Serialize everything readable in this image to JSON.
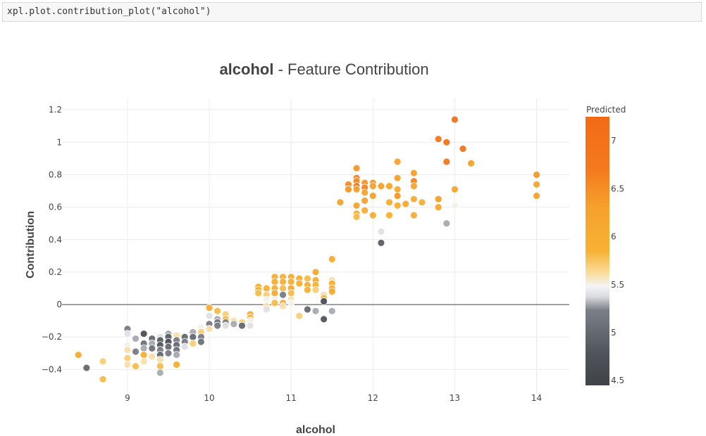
{
  "notebook": {
    "code": "xpl.plot.contribution_plot(\"alcohol\")"
  },
  "chart_data": {
    "type": "scatter",
    "title_bold": "alcohol",
    "title_rest": " - Feature Contribution",
    "xlabel": "alcohol",
    "ylabel": "Contribution",
    "xlim": [
      8.2,
      14.4
    ],
    "ylim": [
      -0.55,
      1.27
    ],
    "xticks": [
      9,
      10,
      11,
      12,
      13,
      14
    ],
    "yticks": [
      -0.4,
      -0.2,
      0,
      0.2,
      0.4,
      0.6,
      0.8,
      1,
      1.2
    ],
    "xtick_labels": [
      "9",
      "10",
      "11",
      "12",
      "13",
      "14"
    ],
    "ytick_labels": [
      "−0.4",
      "−0.2",
      "0",
      "0.2",
      "0.4",
      "0.6",
      "0.8",
      "1",
      "1.2"
    ],
    "grid": true,
    "zero_line": true,
    "colorbar": {
      "title": "Predicted",
      "range": [
        4.45,
        7.25
      ],
      "ticks": [
        4.5,
        5,
        5.5,
        6,
        6.5,
        7
      ],
      "tick_labels": [
        "4.5",
        "5",
        "5.5",
        "6",
        "6.5",
        "7"
      ],
      "colorscale": [
        [
          0.0,
          "#3f4247"
        ],
        [
          0.12,
          "#50545b"
        ],
        [
          0.28,
          "#7b7f87"
        ],
        [
          0.33,
          "#d9dbe0"
        ],
        [
          0.37,
          "#f4f4f4"
        ],
        [
          0.42,
          "#f9dc9a"
        ],
        [
          0.5,
          "#f7b133"
        ],
        [
          0.66,
          "#f6a22c"
        ],
        [
          0.8,
          "#f47a1e"
        ],
        [
          1.0,
          "#f26a16"
        ]
      ]
    },
    "points": [
      [
        8.4,
        -0.31,
        6.0
      ],
      [
        8.5,
        -0.39,
        5.0
      ],
      [
        8.7,
        -0.35,
        5.7
      ],
      [
        8.7,
        -0.46,
        5.8
      ],
      [
        9.0,
        -0.15,
        5.2
      ],
      [
        9.0,
        -0.18,
        5.4
      ],
      [
        9.0,
        -0.25,
        5.5
      ],
      [
        9.0,
        -0.28,
        5.6
      ],
      [
        9.0,
        -0.33,
        5.7
      ],
      [
        9.0,
        -0.37,
        5.6
      ],
      [
        9.1,
        -0.21,
        5.3
      ],
      [
        9.1,
        -0.29,
        5.2
      ],
      [
        9.1,
        -0.38,
        5.8
      ],
      [
        9.2,
        -0.18,
        4.7
      ],
      [
        9.2,
        -0.24,
        5.1
      ],
      [
        9.2,
        -0.27,
        5.3
      ],
      [
        9.2,
        -0.31,
        5.9
      ],
      [
        9.2,
        -0.35,
        5.6
      ],
      [
        9.3,
        -0.21,
        5.0
      ],
      [
        9.3,
        -0.24,
        5.3
      ],
      [
        9.3,
        -0.27,
        5.1
      ],
      [
        9.3,
        -0.32,
        5.6
      ],
      [
        9.4,
        -0.2,
        5.4
      ],
      [
        9.4,
        -0.22,
        4.9
      ],
      [
        9.4,
        -0.25,
        4.8
      ],
      [
        9.4,
        -0.28,
        5.2
      ],
      [
        9.4,
        -0.31,
        5.0
      ],
      [
        9.4,
        -0.34,
        5.6
      ],
      [
        9.4,
        -0.38,
        5.8
      ],
      [
        9.4,
        -0.42,
        5.3
      ],
      [
        9.5,
        -0.18,
        5.3
      ],
      [
        9.5,
        -0.2,
        4.9
      ],
      [
        9.5,
        -0.23,
        4.7
      ],
      [
        9.5,
        -0.26,
        5.0
      ],
      [
        9.5,
        -0.3,
        5.2
      ],
      [
        9.6,
        -0.19,
        5.6
      ],
      [
        9.6,
        -0.22,
        5.2
      ],
      [
        9.6,
        -0.25,
        5.0
      ],
      [
        9.6,
        -0.28,
        5.1
      ],
      [
        9.6,
        -0.31,
        5.3
      ],
      [
        9.6,
        -0.37,
        5.9
      ],
      [
        9.7,
        -0.2,
        5.0
      ],
      [
        9.7,
        -0.23,
        5.2
      ],
      [
        9.7,
        -0.26,
        5.4
      ],
      [
        9.8,
        -0.17,
        5.3
      ],
      [
        9.8,
        -0.2,
        5.0
      ],
      [
        9.8,
        -0.24,
        5.7
      ],
      [
        9.9,
        -0.14,
        5.5
      ],
      [
        9.9,
        -0.17,
        5.7
      ],
      [
        9.9,
        -0.2,
        5.2
      ],
      [
        9.9,
        -0.23,
        5.1
      ],
      [
        10.0,
        -0.02,
        6.0
      ],
      [
        10.0,
        -0.07,
        5.4
      ],
      [
        10.0,
        -0.12,
        5.2
      ],
      [
        10.0,
        -0.15,
        5.6
      ],
      [
        10.1,
        -0.04,
        5.8
      ],
      [
        10.1,
        -0.09,
        5.3
      ],
      [
        10.1,
        -0.11,
        5.1
      ],
      [
        10.1,
        -0.13,
        5.2
      ],
      [
        10.2,
        -0.06,
        5.7
      ],
      [
        10.2,
        -0.09,
        5.8
      ],
      [
        10.2,
        -0.11,
        5.2
      ],
      [
        10.2,
        -0.13,
        5.4
      ],
      [
        10.3,
        -0.1,
        5.6
      ],
      [
        10.3,
        -0.12,
        5.3
      ],
      [
        10.4,
        -0.11,
        5.7
      ],
      [
        10.4,
        -0.13,
        5.0
      ],
      [
        10.5,
        -0.06,
        6.0
      ],
      [
        10.5,
        -0.08,
        5.8
      ],
      [
        10.5,
        -0.1,
        5.5
      ],
      [
        10.5,
        -0.13,
        5.4
      ],
      [
        10.6,
        0.11,
        6.0
      ],
      [
        10.6,
        0.09,
        5.9
      ],
      [
        10.6,
        0.07,
        5.8
      ],
      [
        10.7,
        0.1,
        5.9
      ],
      [
        10.7,
        0.06,
        5.7
      ],
      [
        10.7,
        0.03,
        5.5
      ],
      [
        10.7,
        -0.01,
        5.6
      ],
      [
        10.7,
        -0.03,
        5.4
      ],
      [
        10.8,
        0.17,
        6.0
      ],
      [
        10.8,
        0.14,
        6.0
      ],
      [
        10.8,
        0.1,
        5.9
      ],
      [
        10.8,
        0.07,
        6.1
      ],
      [
        10.8,
        0.03,
        5.5
      ],
      [
        10.8,
        0.01,
        5.8
      ],
      [
        10.9,
        0.17,
        6.0
      ],
      [
        10.9,
        0.14,
        5.9
      ],
      [
        10.9,
        0.1,
        5.8
      ],
      [
        10.9,
        0.06,
        5.2
      ],
      [
        10.9,
        0.01,
        6.0
      ],
      [
        10.9,
        -0.01,
        5.6
      ],
      [
        11.0,
        0.17,
        6.0
      ],
      [
        11.0,
        0.14,
        5.9
      ],
      [
        11.0,
        0.1,
        6.1
      ],
      [
        11.0,
        0.07,
        5.8
      ],
      [
        11.0,
        0.03,
        5.6
      ],
      [
        11.0,
        0.01,
        5.5
      ],
      [
        11.1,
        0.16,
        6.0
      ],
      [
        11.1,
        0.13,
        5.9
      ],
      [
        11.1,
        -0.07,
        5.7
      ],
      [
        11.2,
        0.16,
        5.8
      ],
      [
        11.2,
        0.12,
        6.0
      ],
      [
        11.2,
        0.09,
        5.9
      ],
      [
        11.2,
        -0.03,
        5.0
      ],
      [
        11.3,
        0.2,
        6.1
      ],
      [
        11.3,
        0.15,
        6.0
      ],
      [
        11.3,
        0.12,
        5.9
      ],
      [
        11.3,
        0.09,
        5.7
      ],
      [
        11.3,
        -0.04,
        5.3
      ],
      [
        11.4,
        0.06,
        5.6
      ],
      [
        11.4,
        0.04,
        5.8
      ],
      [
        11.4,
        0.02,
        4.7
      ],
      [
        11.4,
        -0.09,
        4.8
      ],
      [
        11.5,
        0.28,
        6.0
      ],
      [
        11.5,
        0.15,
        5.6
      ],
      [
        11.5,
        0.13,
        5.9
      ],
      [
        11.5,
        0.1,
        6.0
      ],
      [
        11.5,
        0.08,
        6.1
      ],
      [
        11.5,
        -0.04,
        5.3
      ],
      [
        11.6,
        0.63,
        6.2
      ],
      [
        11.7,
        0.74,
        6.5
      ],
      [
        11.7,
        0.71,
        6.4
      ],
      [
        11.8,
        0.84,
        6.4
      ],
      [
        11.8,
        0.78,
        6.6
      ],
      [
        11.8,
        0.76,
        6.5
      ],
      [
        11.8,
        0.73,
        6.7
      ],
      [
        11.8,
        0.71,
        6.3
      ],
      [
        11.8,
        0.61,
        6.2
      ],
      [
        11.8,
        0.56,
        6.0
      ],
      [
        11.8,
        0.54,
        5.8
      ],
      [
        11.9,
        0.75,
        6.4
      ],
      [
        11.9,
        0.72,
        6.6
      ],
      [
        11.9,
        0.69,
        6.2
      ],
      [
        11.9,
        0.64,
        6.3
      ],
      [
        11.9,
        0.58,
        6.0
      ],
      [
        12.0,
        0.75,
        6.4
      ],
      [
        12.0,
        0.73,
        6.2
      ],
      [
        12.0,
        0.67,
        6.3
      ],
      [
        12.0,
        0.55,
        6.0
      ],
      [
        12.1,
        0.73,
        6.3
      ],
      [
        12.1,
        0.45,
        5.4
      ],
      [
        12.1,
        0.38,
        4.9
      ],
      [
        12.2,
        0.73,
        6.2
      ],
      [
        12.2,
        0.63,
        6.0
      ],
      [
        12.2,
        0.55,
        5.9
      ],
      [
        12.3,
        0.88,
        6.2
      ],
      [
        12.3,
        0.78,
        6.3
      ],
      [
        12.3,
        0.71,
        6.1
      ],
      [
        12.3,
        0.67,
        6.4
      ],
      [
        12.3,
        0.61,
        5.9
      ],
      [
        12.4,
        0.62,
        6.1
      ],
      [
        12.5,
        0.81,
        6.3
      ],
      [
        12.5,
        0.76,
        6.6
      ],
      [
        12.5,
        0.73,
        6.2
      ],
      [
        12.5,
        0.65,
        6.0
      ],
      [
        12.5,
        0.55,
        6.0
      ],
      [
        12.6,
        0.63,
        5.9
      ],
      [
        12.8,
        1.02,
        6.8
      ],
      [
        12.8,
        0.65,
        6.3
      ],
      [
        12.8,
        0.6,
        6.1
      ],
      [
        12.9,
        1.0,
        6.9
      ],
      [
        12.9,
        0.88,
        6.8
      ],
      [
        12.9,
        0.5,
        5.3
      ],
      [
        13.0,
        1.14,
        7.0
      ],
      [
        13.0,
        0.71,
        6.2
      ],
      [
        13.0,
        0.61,
        5.5
      ],
      [
        13.1,
        0.96,
        6.9
      ],
      [
        13.2,
        0.87,
        6.3
      ],
      [
        14.0,
        0.8,
        6.4
      ],
      [
        14.0,
        0.74,
        6.2
      ],
      [
        14.0,
        0.67,
        6.3
      ]
    ]
  }
}
